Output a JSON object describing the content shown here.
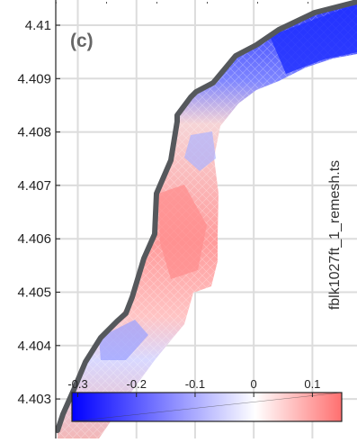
{
  "chart_data": {
    "type": "heatmap",
    "panel_label": "(c)",
    "side_label": "fblk1027ft_1_remesh.ts",
    "y_ticks": [
      "4.41",
      "4.409",
      "4.408",
      "4.407",
      "4.406",
      "4.405",
      "4.404",
      "4.403"
    ],
    "y_tick_values": [
      4.41,
      4.409,
      4.408,
      4.407,
      4.406,
      4.405,
      4.404,
      4.403
    ],
    "ylim": [
      4.4023,
      4.4108
    ],
    "grid": true,
    "colorbar": {
      "ticks": [
        "-0.3",
        "-0.2",
        "-0.1",
        "0",
        "0.1"
      ],
      "tick_values": [
        -0.3,
        -0.2,
        -0.1,
        0,
        0.1
      ],
      "range": [
        -0.31,
        0.15
      ],
      "colors": [
        "#0000ff",
        "#ffffff",
        "#ff6666"
      ]
    },
    "colors": {
      "trace": "#55585c",
      "grid": "#dcdcdc",
      "negative": "#1a2bff",
      "positive": "#ff7f7f"
    }
  }
}
